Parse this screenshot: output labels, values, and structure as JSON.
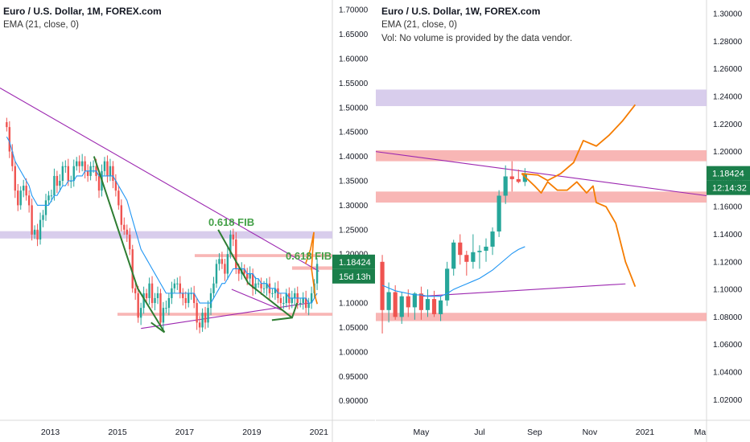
{
  "left_panel": {
    "title": "Euro / U.S. Dollar, 1M, FOREX.com",
    "indicator": "EMA (21, close, 0)",
    "price_label": "1.18424",
    "countdown_label": "15d 13h",
    "fib_top": "0.618 FIB",
    "fib_right": "0.618 FIB"
  },
  "right_panel": {
    "title": "Euro / U.S. Dollar, 1W, FOREX.com",
    "indicator": "EMA (21, close, 0)",
    "vol_note": "Vol: No volume is provided by the data vendor.",
    "price_label": "1.18424",
    "countdown_label": "12:14:32"
  },
  "colors": {
    "up": "#26a69a",
    "down": "#ef5350",
    "ema": "#2196f3",
    "trendline": "#9c27b0",
    "zone_red": "#f7a9a8",
    "zone_purple": "#d1c4e9",
    "forecast": "#f57c00",
    "fib": "#43a047",
    "price_label_bg": "#1b7f4b"
  },
  "chart_data": [
    {
      "type": "candlestick",
      "title": "Euro / U.S. Dollar, 1M, FOREX.com",
      "ylim": [
        0.86,
        1.72
      ],
      "y_ticks": [
        "1.70000",
        "1.65000",
        "1.60000",
        "1.55000",
        "1.50000",
        "1.45000",
        "1.40000",
        "1.35000",
        "1.30000",
        "1.25000",
        "1.20000",
        "1.15000",
        "1.10000",
        "1.05000",
        "1.00000",
        "0.95000",
        "0.90000"
      ],
      "x_ticks": [
        "2013",
        "2015",
        "2017",
        "2019",
        "2021"
      ],
      "x_tick_years": [
        2013,
        2015,
        2017,
        2019,
        2021
      ],
      "xlim": [
        2011.5,
        2021.4
      ],
      "ohlc_monthly_approx": {
        "start": 2011.7,
        "step": 0.0833,
        "closes": [
          1.46,
          1.41,
          1.38,
          1.33,
          1.3,
          1.33,
          1.34,
          1.32,
          1.3,
          1.24,
          1.25,
          1.23,
          1.27,
          1.28,
          1.31,
          1.32,
          1.32,
          1.36,
          1.34,
          1.35,
          1.38,
          1.38,
          1.35,
          1.35,
          1.38,
          1.39,
          1.38,
          1.39,
          1.37,
          1.36,
          1.38,
          1.38,
          1.36,
          1.33,
          1.37,
          1.39,
          1.36,
          1.38,
          1.35,
          1.33,
          1.3,
          1.26,
          1.25,
          1.24,
          1.21,
          1.13,
          1.12,
          1.07,
          1.09,
          1.12,
          1.11,
          1.14,
          1.1,
          1.11,
          1.12,
          1.06,
          1.09,
          1.09,
          1.11,
          1.13,
          1.14,
          1.14,
          1.12,
          1.11,
          1.1,
          1.12,
          1.12,
          1.1,
          1.06,
          1.05,
          1.08,
          1.06,
          1.09,
          1.12,
          1.14,
          1.18,
          1.19,
          1.18,
          1.16,
          1.2,
          1.24,
          1.23,
          1.17,
          1.16,
          1.17,
          1.16,
          1.15,
          1.16,
          1.13,
          1.14,
          1.14,
          1.13,
          1.13,
          1.14,
          1.12,
          1.12,
          1.13,
          1.11,
          1.1,
          1.1,
          1.12,
          1.1,
          1.11,
          1.12,
          1.1,
          1.1,
          1.11,
          1.09,
          1.1,
          1.12,
          1.14,
          1.18
        ],
        "highs_extra": 0.015,
        "lows_extra": 0.015
      },
      "ema": [
        1.44,
        1.43,
        1.41,
        1.39,
        1.38,
        1.37,
        1.36,
        1.35,
        1.34,
        1.32,
        1.31,
        1.3,
        1.3,
        1.3,
        1.3,
        1.3,
        1.31,
        1.32,
        1.32,
        1.33,
        1.34,
        1.34,
        1.35,
        1.35,
        1.35,
        1.36,
        1.36,
        1.36,
        1.37,
        1.37,
        1.37,
        1.37,
        1.37,
        1.36,
        1.36,
        1.36,
        1.36,
        1.36,
        1.36,
        1.35,
        1.34,
        1.33,
        1.32,
        1.31,
        1.29,
        1.27,
        1.25,
        1.23,
        1.21,
        1.2,
        1.19,
        1.18,
        1.17,
        1.16,
        1.15,
        1.14,
        1.13,
        1.12,
        1.12,
        1.12,
        1.12,
        1.12,
        1.12,
        1.12,
        1.12,
        1.12,
        1.12,
        1.12,
        1.11,
        1.1,
        1.1,
        1.1,
        1.1,
        1.1,
        1.11,
        1.12,
        1.13,
        1.14,
        1.14,
        1.15,
        1.16,
        1.17,
        1.17,
        1.17,
        1.17,
        1.17,
        1.16,
        1.16,
        1.16,
        1.15,
        1.15,
        1.14,
        1.14,
        1.14,
        1.13,
        1.13,
        1.13,
        1.12,
        1.12,
        1.12,
        1.12,
        1.11,
        1.11,
        1.11,
        1.11,
        1.11,
        1.11,
        1.11,
        1.1,
        1.1,
        1.11,
        1.12
      ],
      "zones": [
        {
          "color": "purple",
          "y": [
            1.232,
            1.247
          ],
          "x_from": 2011.5
        },
        {
          "color": "red",
          "y": [
            1.194,
            1.2
          ],
          "x_from": 2017.3
        },
        {
          "color": "red",
          "y": [
            1.168,
            1.175
          ],
          "x_from": 2020.2
        },
        {
          "color": "red",
          "y": [
            1.074,
            1.08
          ],
          "x_from": 2015.0
        }
      ],
      "trendlines": [
        {
          "color": "purple",
          "points": [
            [
              2011.5,
              1.54
            ],
            [
              2021.0,
              1.165
            ]
          ]
        },
        {
          "color": "purple",
          "points": [
            [
              2015.7,
              1.048
            ],
            [
              2020.7,
              1.1
            ]
          ]
        },
        {
          "color": "purple",
          "points": [
            [
              2018.4,
              1.128
            ],
            [
              2019.9,
              1.085
            ]
          ]
        }
      ],
      "fib_lines": [
        {
          "points": [
            [
              2014.3,
              1.4
            ],
            [
              2015.6,
              1.13
            ],
            [
              2016.4,
              1.04
            ]
          ]
        },
        {
          "points": [
            [
              2016.0,
              1.06
            ],
            [
              2016.4,
              1.04
            ]
          ]
        },
        {
          "points": [
            [
              2018.0,
              1.25
            ],
            [
              2018.9,
              1.14
            ],
            [
              2020.2,
              1.07
            ]
          ]
        },
        {
          "points": [
            [
              2019.6,
              1.065
            ],
            [
              2020.2,
              1.07
            ],
            [
              2020.35,
              1.1
            ]
          ]
        }
      ],
      "forecast": [
        [
          2020.6,
          1.18
        ],
        [
          2020.75,
          1.21
        ],
        [
          2020.85,
          1.245
        ],
        [
          2020.78,
          1.17
        ],
        [
          2020.9,
          1.11
        ],
        [
          2020.95,
          1.098
        ]
      ],
      "last_price": 1.18424
    },
    {
      "type": "candlestick",
      "title": "Euro / U.S. Dollar, 1W, FOREX.com",
      "ylim": [
        1.005,
        1.31
      ],
      "y_ticks": [
        "1.30000",
        "1.28000",
        "1.26000",
        "1.24000",
        "1.22000",
        "1.20000",
        "1.18000",
        "1.16000",
        "1.14000",
        "1.12000",
        "1.10000",
        "1.08000",
        "1.06000",
        "1.04000",
        "1.02000"
      ],
      "x_ticks": [
        "May",
        "Jul",
        "Sep",
        "Nov",
        "2021",
        "Ma"
      ],
      "x_tick_weeks": [
        7,
        16,
        24.5,
        33,
        41.5,
        50
      ],
      "xlim": [
        0,
        51
      ],
      "ohlc_weekly_approx": [
        {
          "o": 1.12,
          "h": 1.125,
          "l": 1.068,
          "c": 1.085
        },
        {
          "o": 1.085,
          "h": 1.105,
          "l": 1.076,
          "c": 1.098
        },
        {
          "o": 1.098,
          "h": 1.103,
          "l": 1.078,
          "c": 1.08
        },
        {
          "o": 1.08,
          "h": 1.098,
          "l": 1.075,
          "c": 1.095
        },
        {
          "o": 1.095,
          "h": 1.1,
          "l": 1.08,
          "c": 1.087
        },
        {
          "o": 1.087,
          "h": 1.098,
          "l": 1.078,
          "c": 1.097
        },
        {
          "o": 1.097,
          "h": 1.102,
          "l": 1.078,
          "c": 1.085
        },
        {
          "o": 1.085,
          "h": 1.1,
          "l": 1.08,
          "c": 1.093
        },
        {
          "o": 1.093,
          "h": 1.099,
          "l": 1.08,
          "c": 1.082
        },
        {
          "o": 1.082,
          "h": 1.095,
          "l": 1.077,
          "c": 1.092
        },
        {
          "o": 1.092,
          "h": 1.12,
          "l": 1.088,
          "c": 1.115
        },
        {
          "o": 1.115,
          "h": 1.136,
          "l": 1.11,
          "c": 1.134
        },
        {
          "o": 1.134,
          "h": 1.14,
          "l": 1.118,
          "c": 1.125
        },
        {
          "o": 1.125,
          "h": 1.128,
          "l": 1.11,
          "c": 1.12
        },
        {
          "o": 1.12,
          "h": 1.14,
          "l": 1.115,
          "c": 1.127
        },
        {
          "o": 1.127,
          "h": 1.132,
          "l": 1.115,
          "c": 1.128
        },
        {
          "o": 1.128,
          "h": 1.137,
          "l": 1.12,
          "c": 1.131
        },
        {
          "o": 1.131,
          "h": 1.145,
          "l": 1.125,
          "c": 1.142
        },
        {
          "o": 1.142,
          "h": 1.172,
          "l": 1.138,
          "c": 1.168
        },
        {
          "o": 1.168,
          "h": 1.19,
          "l": 1.162,
          "c": 1.182
        },
        {
          "o": 1.182,
          "h": 1.193,
          "l": 1.171,
          "c": 1.18
        },
        {
          "o": 1.18,
          "h": 1.187,
          "l": 1.177,
          "c": 1.178
        },
        {
          "o": 1.178,
          "h": 1.188,
          "l": 1.175,
          "c": 1.184
        }
      ],
      "ema": [
        1.103,
        1.101,
        1.099,
        1.098,
        1.097,
        1.096,
        1.096,
        1.095,
        1.095,
        1.095,
        1.097,
        1.1,
        1.102,
        1.104,
        1.106,
        1.108,
        1.111,
        1.114,
        1.118,
        1.122,
        1.126,
        1.129,
        1.131
      ],
      "ema_x_from": 0,
      "zones": [
        {
          "color": "purple",
          "y": [
            1.233,
            1.245
          ],
          "x_from": 0
        },
        {
          "color": "red",
          "y": [
            1.193,
            1.201
          ],
          "x_from": 0
        },
        {
          "color": "red",
          "y": [
            1.163,
            1.171
          ],
          "x_from": 0
        },
        {
          "color": "red",
          "y": [
            1.077,
            1.083
          ],
          "x_from": 0
        }
      ],
      "trendlines": [
        {
          "color": "purple",
          "points": [
            [
              0,
              1.2
            ],
            [
              51,
              1.168
            ]
          ]
        },
        {
          "color": "purple",
          "points": [
            [
              7,
              1.095
            ],
            [
              38.5,
              1.104
            ]
          ]
        }
      ],
      "forecast": [
        [
          [
            22.5,
            1.184
          ],
          [
            25,
            1.183
          ],
          [
            26.5,
            1.179
          ],
          [
            28.5,
            1.184
          ],
          [
            30.5,
            1.192
          ],
          [
            32,
            1.208
          ],
          [
            34,
            1.204
          ],
          [
            36,
            1.212
          ],
          [
            38,
            1.222
          ],
          [
            40,
            1.234
          ]
        ],
        [
          [
            22.5,
            1.184
          ],
          [
            24.5,
            1.175
          ],
          [
            25.5,
            1.17
          ],
          [
            26.5,
            1.178
          ],
          [
            28,
            1.172
          ],
          [
            29.5,
            1.172
          ],
          [
            31,
            1.178
          ],
          [
            32.5,
            1.17
          ],
          [
            33.5,
            1.175
          ],
          [
            34,
            1.163
          ],
          [
            35.5,
            1.16
          ],
          [
            37,
            1.148
          ],
          [
            38.5,
            1.12
          ],
          [
            40,
            1.102
          ]
        ]
      ],
      "last_price": 1.18424
    }
  ]
}
